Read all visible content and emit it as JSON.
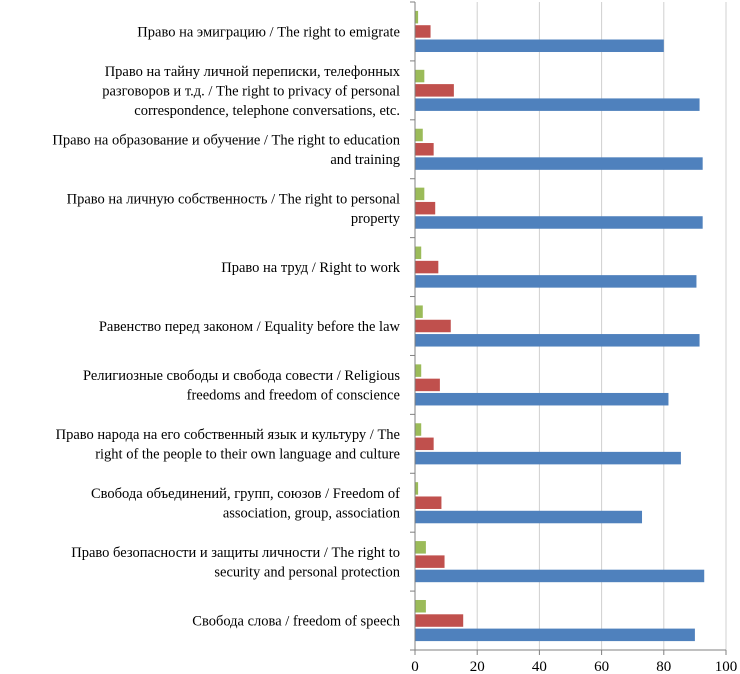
{
  "chart_data": {
    "type": "bar",
    "orientation": "horizontal",
    "title": "",
    "xlabel": "",
    "ylabel": "",
    "xlim": [
      0,
      100
    ],
    "xticks": [
      0,
      20,
      40,
      60,
      80,
      100
    ],
    "grid": true,
    "legend": "none",
    "categories": [
      [
        "Право на эмиграцию / The right to emigrate"
      ],
      [
        "Право на тайну личной переписки, телефонных",
        "разговоров и т.д. / The right to privacy of personal",
        "correspondence, telephone conversations, etc."
      ],
      [
        "Право на образование и обучение / The right to education",
        "and training"
      ],
      [
        "Право на личную собственность / The right to personal",
        "property"
      ],
      [
        "Право на труд / Right to work"
      ],
      [
        "Равенство перед законом / Equality before the law"
      ],
      [
        "Религиозные свободы и свобода совести / Religious",
        "freedoms and freedom of conscience"
      ],
      [
        "Право народа на его собственный язык и культуру / The",
        "right of the people to their own language and culture"
      ],
      [
        "Свобода объединений, групп, союзов / Freedom of",
        "association, group, association"
      ],
      [
        "Право безопасности и защиты личности / The right to",
        "security and personal protection"
      ],
      [
        "Свобода слова / freedom of speech"
      ]
    ],
    "series": [
      {
        "color": "#9bbb59",
        "values": [
          1,
          3,
          2.5,
          3,
          2,
          2.5,
          2,
          2,
          1,
          3.5,
          3.5
        ]
      },
      {
        "color": "#c0504d",
        "values": [
          5,
          12.5,
          6,
          6.5,
          7.5,
          11.5,
          8,
          6,
          8.5,
          9.5,
          15.5
        ]
      },
      {
        "color": "#4f81bd",
        "values": [
          80,
          91.5,
          92.5,
          92.5,
          90.5,
          91.5,
          81.5,
          85.5,
          73,
          93,
          90
        ]
      }
    ]
  }
}
